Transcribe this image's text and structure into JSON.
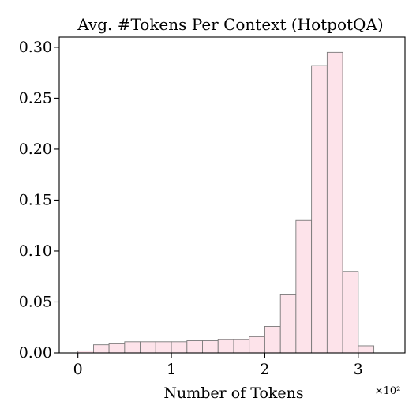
{
  "chart_data": {
    "type": "bar",
    "title": "Avg. #Tokens Per Context (HotpotQA)",
    "xlabel": "Number of Tokens",
    "ylabel": "",
    "x_multiplier_label": "×10²",
    "xlim": [
      -0.2,
      3.5
    ],
    "ylim": [
      0,
      0.31
    ],
    "xticks": [
      0,
      1,
      2,
      3
    ],
    "xtick_labels": [
      "0",
      "1",
      "2",
      "3"
    ],
    "yticks": [
      0.0,
      0.05,
      0.1,
      0.15,
      0.2,
      0.25,
      0.3
    ],
    "ytick_labels": [
      "0.00",
      "0.05",
      "0.10",
      "0.15",
      "0.20",
      "0.25",
      "0.30"
    ],
    "grid": false,
    "bar_color": "#fde3ea",
    "bar_edge_color": "#7a7a7a",
    "bin_edges": [
      0.0,
      0.167,
      0.333,
      0.5,
      0.667,
      0.833,
      1.0,
      1.167,
      1.333,
      1.5,
      1.667,
      1.833,
      2.0,
      2.167,
      2.333,
      2.5,
      2.667,
      2.833,
      3.0,
      3.167
    ],
    "values": [
      0.002,
      0.008,
      0.009,
      0.011,
      0.011,
      0.011,
      0.011,
      0.012,
      0.012,
      0.013,
      0.013,
      0.016,
      0.026,
      0.057,
      0.13,
      0.282,
      0.295,
      0.08,
      0.007
    ]
  }
}
